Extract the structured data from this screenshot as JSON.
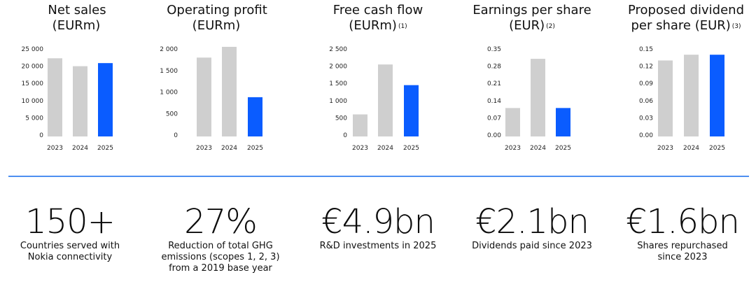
{
  "colors": {
    "grey_bar": "#cfcfcf",
    "highlight_bar": "#0a5cff",
    "divider": "#4e8ff0"
  },
  "chart_data": [
    {
      "type": "bar",
      "title_lines": [
        "Net sales",
        "(EURm)"
      ],
      "footnote": "",
      "categories": [
        "2023",
        "2024",
        "2025"
      ],
      "values": [
        22300,
        20000,
        20900
      ],
      "ylim": [
        0,
        25000
      ],
      "y_ticks": [
        "0",
        "5 000",
        "10 000",
        "15 000",
        "20 000",
        "25 000"
      ],
      "highlight_index": 2
    },
    {
      "type": "bar",
      "title_lines": [
        "Operating profit",
        "(EURm)"
      ],
      "footnote": "",
      "categories": [
        "2023",
        "2024",
        "2025"
      ],
      "values": [
        1800,
        2050,
        880
      ],
      "ylim": [
        0,
        2000
      ],
      "y_ticks": [
        "0",
        "500",
        "1 000",
        "1 500",
        "2 000"
      ],
      "highlight_index": 2
    },
    {
      "type": "bar",
      "title_lines": [
        "Free cash flow",
        "(EURm)"
      ],
      "footnote": "(1)",
      "categories": [
        "2023",
        "2024",
        "2025"
      ],
      "values": [
        600,
        2050,
        1450
      ],
      "ylim": [
        0,
        2500
      ],
      "y_ticks": [
        "0",
        "500",
        "1 000",
        "1 500",
        "2 000",
        "2 500"
      ],
      "highlight_index": 2
    },
    {
      "type": "bar",
      "title_lines": [
        "Earnings per share",
        "(EUR)"
      ],
      "footnote": "(2)",
      "categories": [
        "2023",
        "2024",
        "2025"
      ],
      "values": [
        0.11,
        0.31,
        0.11
      ],
      "ylim": [
        0,
        0.35
      ],
      "y_ticks": [
        "0.00",
        "0.07",
        "0.14",
        "0.21",
        "0.28",
        "0.35"
      ],
      "highlight_index": 2
    },
    {
      "type": "bar",
      "title_lines": [
        "Proposed dividend",
        "per share (EUR)"
      ],
      "footnote": "(3)",
      "categories": [
        "2023",
        "2024",
        "2025"
      ],
      "values": [
        0.13,
        0.14,
        0.14
      ],
      "ylim": [
        0,
        0.15
      ],
      "y_ticks": [
        "0.00",
        "0.03",
        "0.06",
        "0.09",
        "0.12",
        "0.15"
      ],
      "highlight_index": 2
    }
  ],
  "stats": [
    {
      "value": "150+",
      "description": "Countries served with\nNokia connectivity"
    },
    {
      "value": "27%",
      "description": "Reduction of total GHG\nemissions (scopes 1, 2, 3)\nfrom a 2019 base year"
    },
    {
      "value": "€4.9bn",
      "description": "R&D investments in 2025"
    },
    {
      "value": "€2.1bn",
      "description": "Dividends paid since 2023"
    },
    {
      "value": "€1.6bn",
      "description": "Shares repurchased\nsince 2023"
    }
  ]
}
